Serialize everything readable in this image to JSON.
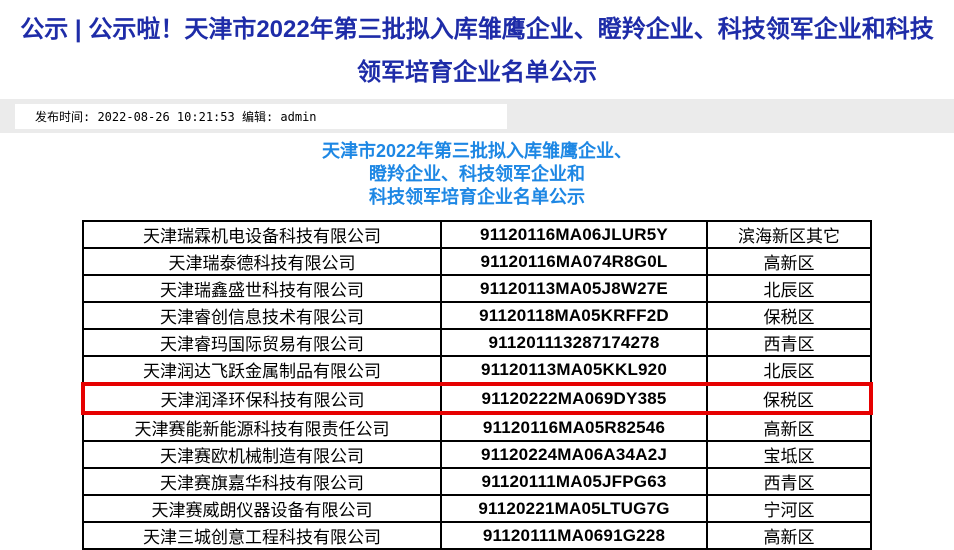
{
  "title": {
    "line1": "公示 | 公示啦！天津市2022年第三批拟入库雏鹰企业、瞪羚企业、科技领军企业和科技",
    "line2": "领军培育企业名单公示"
  },
  "meta": {
    "text": "发布时间: 2022-08-26 10:21:53 编辑: admin"
  },
  "subtitle": {
    "line1": "天津市2022年第三批拟入库雏鹰企业、",
    "line2": "瞪羚企业、科技领军企业和",
    "line3": "科技领军培育企业名单公示"
  },
  "table": {
    "columns": [
      "company_name",
      "credit_code",
      "district"
    ],
    "highlighted_row_index": 6,
    "rows": [
      [
        "天津瑞霖机电设备科技有限公司",
        "91120116MA06JLUR5Y",
        "滨海新区其它"
      ],
      [
        "天津瑞泰德科技有限公司",
        "91120116MA074R8G0L",
        "高新区"
      ],
      [
        "天津瑞鑫盛世科技有限公司",
        "91120113MA05J8W27E",
        "北辰区"
      ],
      [
        "天津睿创信息技术有限公司",
        "91120118MA05KRFF2D",
        "保税区"
      ],
      [
        "天津睿玛国际贸易有限公司",
        "911201113287174278",
        "西青区"
      ],
      [
        "天津润达飞跃金属制品有限公司",
        "91120113MA05KKL920",
        "北辰区"
      ],
      [
        "天津润泽环保科技有限公司",
        "91120222MA069DY385",
        "保税区"
      ],
      [
        "天津赛能新能源科技有限责任公司",
        "91120116MA05R82546",
        "高新区"
      ],
      [
        "天津赛欧机械制造有限公司",
        "91120224MA06A34A2J",
        "宝坻区"
      ],
      [
        "天津赛旗嘉华科技有限公司",
        "91120111MA05JFPG63",
        "西青区"
      ],
      [
        "天津赛威朗仪器设备有限公司",
        "91120221MA05LTUG7G",
        "宁河区"
      ],
      [
        "天津三城创意工程科技有限公司",
        "91120111MA0691G228",
        "高新区"
      ]
    ]
  },
  "colors": {
    "title_text": "#1e2ca8",
    "subtitle_text": "#1d87e4",
    "highlight_border": "#e60000",
    "meta_band_bg": "#ebebeb",
    "table_border": "#000000"
  }
}
